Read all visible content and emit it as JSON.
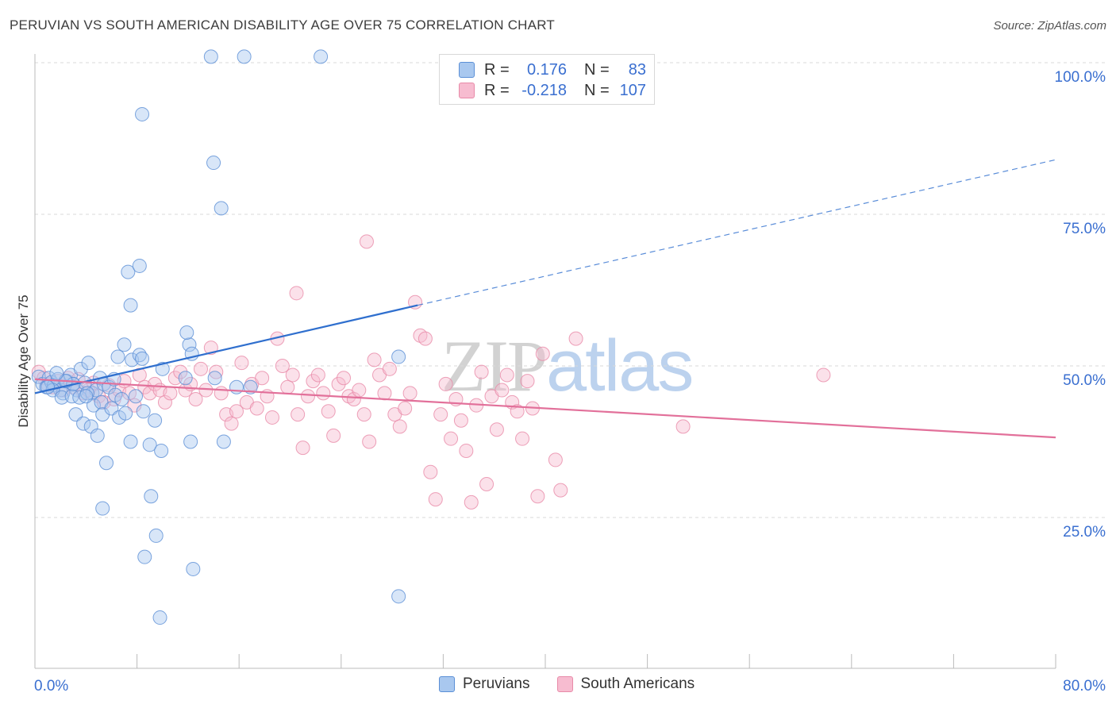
{
  "title": "PERUVIAN VS SOUTH AMERICAN DISABILITY AGE OVER 75 CORRELATION CHART",
  "source": "Source: ZipAtlas.com",
  "watermark": {
    "zip": "ZIP",
    "atlas": "atlas"
  },
  "legend": {
    "rows": [
      {
        "r_label": "R =",
        "r_value": "0.176",
        "n_label": "N =",
        "n_value": "83"
      },
      {
        "r_label": "R =",
        "r_value": "-0.218",
        "n_label": "N =",
        "n_value": "107"
      }
    ]
  },
  "bottom_legend": [
    "Peruvians",
    "South Americans"
  ],
  "colors": {
    "blue_fill": "#a9c8ef",
    "blue_stroke": "#5b8fd6",
    "blue_line": "#2f6fce",
    "pink_fill": "#f7bcd0",
    "pink_stroke": "#e88aa8",
    "pink_line": "#e2709a",
    "grid": "#d9d9d9",
    "tick_label": "#3a6fd0"
  },
  "chart_data": {
    "type": "scatter",
    "title": "PERUVIAN VS SOUTH AMERICAN DISABILITY AGE OVER 75 CORRELATION CHART",
    "xlabel": "",
    "ylabel": "Disability Age Over 75",
    "xlim": [
      0,
      80
    ],
    "ylim": [
      0,
      105
    ],
    "x_tick_labels": [
      "0.0%",
      "80.0%"
    ],
    "y_tick_labels": [
      "25.0%",
      "50.0%",
      "75.0%",
      "100.0%"
    ],
    "y_ticks": [
      25,
      50,
      75,
      100
    ],
    "grid": "horizontal dashed",
    "legend_position": "top-center",
    "series": [
      {
        "name": "Peruvians",
        "r": 0.176,
        "n": 83,
        "trend": {
          "x0": 0,
          "y0": 45.5,
          "x1": 30,
          "y1": 60.0,
          "dashed_to_x": 80,
          "dashed_to_y": 84.0
        },
        "points": [
          [
            0.3,
            48.2
          ],
          [
            0.6,
            47.0
          ],
          [
            0.9,
            46.5
          ],
          [
            1.1,
            48.0
          ],
          [
            1.3,
            47.3
          ],
          [
            1.5,
            46.8
          ],
          [
            1.8,
            47.8
          ],
          [
            2.0,
            46.0
          ],
          [
            2.2,
            45.5
          ],
          [
            2.5,
            47.5
          ],
          [
            2.8,
            48.5
          ],
          [
            3.0,
            47.0
          ],
          [
            3.3,
            46.0
          ],
          [
            3.6,
            49.5
          ],
          [
            3.9,
            47.2
          ],
          [
            4.2,
            50.5
          ],
          [
            4.5,
            45.5
          ],
          [
            4.8,
            46.0
          ],
          [
            5.1,
            48.0
          ],
          [
            5.4,
            47.0
          ],
          [
            1.4,
            46.0
          ],
          [
            2.1,
            44.8
          ],
          [
            2.9,
            45.0
          ],
          [
            3.5,
            44.8
          ],
          [
            4.1,
            45.5
          ],
          [
            4.6,
            43.5
          ],
          [
            5.2,
            44.0
          ],
          [
            5.8,
            46.5
          ],
          [
            6.3,
            45.2
          ],
          [
            6.8,
            44.5
          ],
          [
            3.2,
            42.0
          ],
          [
            3.8,
            40.5
          ],
          [
            4.4,
            40.0
          ],
          [
            4.9,
            38.5
          ],
          [
            5.3,
            42.0
          ],
          [
            6.0,
            43.0
          ],
          [
            6.6,
            41.5
          ],
          [
            7.1,
            42.2
          ],
          [
            7.9,
            45.0
          ],
          [
            8.5,
            42.5
          ],
          [
            5.6,
            34.0
          ],
          [
            5.3,
            26.5
          ],
          [
            7.5,
            37.5
          ],
          [
            9.0,
            37.0
          ],
          [
            9.9,
            36.0
          ],
          [
            9.1,
            28.5
          ],
          [
            9.5,
            22.0
          ],
          [
            8.6,
            18.5
          ],
          [
            9.8,
            8.5
          ],
          [
            12.4,
            16.5
          ],
          [
            12.2,
            37.5
          ],
          [
            9.4,
            41.0
          ],
          [
            7.0,
            53.5
          ],
          [
            7.6,
            51.0
          ],
          [
            6.5,
            51.5
          ],
          [
            8.2,
            51.8
          ],
          [
            8.4,
            51.2
          ],
          [
            10.0,
            49.5
          ],
          [
            11.8,
            48.0
          ],
          [
            12.1,
            53.5
          ],
          [
            12.3,
            52.0
          ],
          [
            11.9,
            55.5
          ],
          [
            14.1,
            48.0
          ],
          [
            14.8,
            37.5
          ],
          [
            16.9,
            46.5
          ],
          [
            15.8,
            46.5
          ],
          [
            7.5,
            60.0
          ],
          [
            7.3,
            65.5
          ],
          [
            8.2,
            66.5
          ],
          [
            14.6,
            76.0
          ],
          [
            14.0,
            83.5
          ],
          [
            8.4,
            91.5
          ],
          [
            13.8,
            101.0
          ],
          [
            16.4,
            101.0
          ],
          [
            22.4,
            101.0
          ],
          [
            28.5,
            51.5
          ],
          [
            28.5,
            12.0
          ],
          [
            3.0,
            47.0
          ],
          [
            2.4,
            47.5
          ],
          [
            1.0,
            46.5
          ],
          [
            1.7,
            48.8
          ],
          [
            6.2,
            47.8
          ],
          [
            4.0,
            45.0
          ]
        ]
      },
      {
        "name": "South Americans",
        "r": -0.218,
        "n": 107,
        "trend": {
          "x0": 0,
          "y0": 47.8,
          "x1": 80,
          "y1": 38.2
        },
        "points": [
          [
            0.3,
            49.0
          ],
          [
            0.7,
            48.0
          ],
          [
            1.0,
            47.0
          ],
          [
            1.4,
            46.5
          ],
          [
            1.8,
            47.5
          ],
          [
            2.2,
            46.0
          ],
          [
            2.6,
            48.0
          ],
          [
            3.0,
            46.5
          ],
          [
            3.4,
            47.8
          ],
          [
            3.8,
            45.5
          ],
          [
            4.2,
            46.0
          ],
          [
            4.6,
            47.2
          ],
          [
            5.0,
            45.0
          ],
          [
            5.4,
            44.0
          ],
          [
            5.8,
            46.8
          ],
          [
            6.2,
            44.5
          ],
          [
            6.6,
            46.0
          ],
          [
            7.0,
            47.5
          ],
          [
            7.4,
            45.5
          ],
          [
            7.8,
            43.5
          ],
          [
            8.2,
            48.5
          ],
          [
            8.6,
            46.5
          ],
          [
            9.0,
            45.5
          ],
          [
            9.4,
            47.0
          ],
          [
            9.8,
            46.0
          ],
          [
            10.2,
            44.0
          ],
          [
            10.6,
            45.5
          ],
          [
            11.0,
            48.0
          ],
          [
            11.4,
            49.0
          ],
          [
            11.8,
            46.0
          ],
          [
            12.2,
            47.0
          ],
          [
            12.6,
            44.5
          ],
          [
            13.0,
            49.5
          ],
          [
            13.4,
            46.0
          ],
          [
            13.8,
            53.0
          ],
          [
            14.2,
            49.0
          ],
          [
            14.6,
            45.5
          ],
          [
            15.0,
            42.0
          ],
          [
            15.4,
            40.5
          ],
          [
            15.8,
            42.5
          ],
          [
            16.2,
            50.5
          ],
          [
            16.6,
            44.0
          ],
          [
            17.0,
            47.0
          ],
          [
            17.4,
            43.0
          ],
          [
            17.8,
            48.0
          ],
          [
            18.2,
            45.0
          ],
          [
            18.6,
            41.5
          ],
          [
            19.0,
            54.5
          ],
          [
            19.4,
            50.0
          ],
          [
            19.8,
            46.5
          ],
          [
            20.2,
            48.5
          ],
          [
            20.6,
            42.0
          ],
          [
            21.0,
            36.5
          ],
          [
            21.4,
            45.0
          ],
          [
            21.8,
            47.5
          ],
          [
            22.2,
            48.5
          ],
          [
            22.6,
            45.5
          ],
          [
            23.0,
            42.5
          ],
          [
            23.4,
            38.5
          ],
          [
            23.8,
            47.0
          ],
          [
            24.2,
            48.0
          ],
          [
            24.6,
            45.0
          ],
          [
            25.0,
            44.5
          ],
          [
            25.4,
            46.0
          ],
          [
            25.8,
            42.0
          ],
          [
            26.2,
            37.5
          ],
          [
            26.6,
            51.0
          ],
          [
            27.0,
            48.5
          ],
          [
            27.4,
            45.5
          ],
          [
            27.8,
            49.5
          ],
          [
            28.2,
            42.0
          ],
          [
            28.6,
            40.0
          ],
          [
            29.0,
            43.0
          ],
          [
            29.4,
            45.5
          ],
          [
            29.8,
            60.5
          ],
          [
            30.2,
            55.0
          ],
          [
            30.6,
            54.5
          ],
          [
            31.0,
            32.5
          ],
          [
            31.4,
            28.0
          ],
          [
            31.8,
            42.0
          ],
          [
            32.2,
            47.0
          ],
          [
            32.6,
            38.0
          ],
          [
            33.0,
            44.5
          ],
          [
            33.4,
            41.0
          ],
          [
            33.8,
            36.0
          ],
          [
            34.2,
            27.5
          ],
          [
            34.6,
            43.5
          ],
          [
            35.0,
            49.0
          ],
          [
            35.4,
            30.5
          ],
          [
            35.8,
            45.0
          ],
          [
            36.2,
            39.5
          ],
          [
            36.6,
            46.0
          ],
          [
            37.0,
            48.5
          ],
          [
            37.4,
            44.0
          ],
          [
            37.8,
            42.5
          ],
          [
            38.2,
            38.0
          ],
          [
            38.6,
            47.5
          ],
          [
            39.0,
            43.0
          ],
          [
            39.4,
            28.5
          ],
          [
            39.8,
            52.0
          ],
          [
            26.0,
            70.5
          ],
          [
            20.5,
            62.0
          ],
          [
            40.8,
            34.5
          ],
          [
            41.2,
            29.5
          ],
          [
            42.4,
            54.5
          ],
          [
            61.8,
            48.5
          ],
          [
            50.8,
            40.0
          ]
        ]
      }
    ]
  }
}
